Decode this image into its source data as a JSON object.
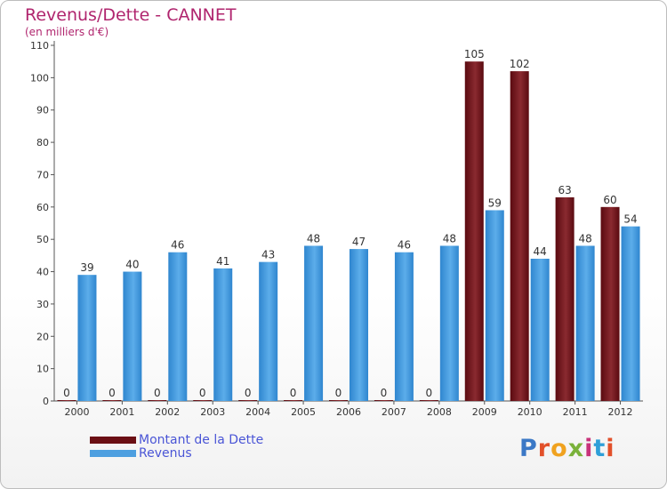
{
  "header": {
    "title": "Revenus/Dette - CANNET",
    "subtitle": "(en milliers d'€)"
  },
  "logo": {
    "text": "Proxiti",
    "colors": [
      "#3b78c6",
      "#e2502a",
      "#f0a21f",
      "#7ab23a",
      "#c8327a",
      "#2f9fd8",
      "#e2502a"
    ]
  },
  "colors": {
    "debt": "#6b0f14",
    "revenue": "#4d9fe0",
    "title": "#b0256e",
    "legend_text": "#4a55d6"
  },
  "chart_data": {
    "type": "bar",
    "title": "Revenus/Dette - CANNET",
    "subtitle": "(en milliers d'€)",
    "xlabel": "",
    "ylabel": "",
    "ylim": [
      0,
      110
    ],
    "yticks": [
      0,
      10,
      20,
      30,
      40,
      50,
      60,
      70,
      80,
      90,
      100,
      110
    ],
    "grid": false,
    "legend_position": "bottom-left",
    "categories": [
      "2000",
      "2001",
      "2002",
      "2003",
      "2004",
      "2005",
      "2006",
      "2007",
      "2008",
      "2009",
      "2010",
      "2011",
      "2012"
    ],
    "series": [
      {
        "name": "Montant de la Dette",
        "color": "#6b0f14",
        "values": [
          0,
          0,
          0,
          0,
          0,
          0,
          0,
          0,
          0,
          105,
          102,
          63,
          60
        ]
      },
      {
        "name": "Revenus",
        "color": "#4d9fe0",
        "values": [
          39,
          40,
          46,
          41,
          43,
          48,
          47,
          46,
          48,
          59,
          44,
          48,
          54
        ]
      }
    ]
  }
}
